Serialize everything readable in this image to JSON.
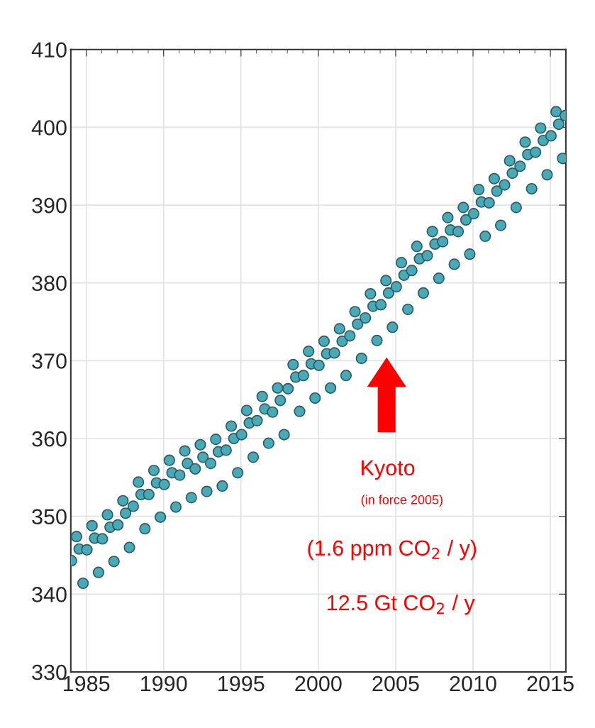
{
  "chart_data": {
    "type": "scatter",
    "x": [
      1984.04,
      1984.37,
      1984.54,
      1984.79,
      1985.04,
      1985.37,
      1985.54,
      1985.79,
      1986.04,
      1986.37,
      1986.54,
      1986.79,
      1987.04,
      1987.37,
      1987.54,
      1987.79,
      1988.04,
      1988.37,
      1988.54,
      1988.79,
      1989.04,
      1989.37,
      1989.54,
      1989.79,
      1990.04,
      1990.37,
      1990.54,
      1990.79,
      1991.04,
      1991.37,
      1991.54,
      1991.79,
      1992.04,
      1992.37,
      1992.54,
      1992.79,
      1993.04,
      1993.37,
      1993.54,
      1993.79,
      1994.04,
      1994.37,
      1994.54,
      1994.79,
      1995.04,
      1995.37,
      1995.54,
      1995.79,
      1996.04,
      1996.37,
      1996.54,
      1996.79,
      1997.04,
      1997.37,
      1997.54,
      1997.79,
      1998.04,
      1998.37,
      1998.54,
      1998.79,
      1999.04,
      1999.37,
      1999.54,
      1999.79,
      2000.04,
      2000.37,
      2000.54,
      2000.79,
      2001.04,
      2001.37,
      2001.54,
      2001.79,
      2002.04,
      2002.37,
      2002.54,
      2002.79,
      2003.04,
      2003.37,
      2003.54,
      2003.79,
      2004.04,
      2004.37,
      2004.54,
      2004.79,
      2005.04,
      2005.37,
      2005.54,
      2005.79,
      2006.04,
      2006.37,
      2006.54,
      2006.79,
      2007.04,
      2007.37,
      2007.54,
      2007.79,
      2008.04,
      2008.37,
      2008.54,
      2008.79,
      2009.04,
      2009.37,
      2009.54,
      2009.79,
      2010.04,
      2010.37,
      2010.54,
      2010.79,
      2011.04,
      2011.37,
      2011.54,
      2011.79,
      2012.04,
      2012.37,
      2012.54,
      2012.79,
      2013.04,
      2013.37,
      2013.54,
      2013.79,
      2014.04,
      2014.37,
      2014.54,
      2014.79,
      2015.04,
      2015.37,
      2015.54,
      2015.79,
      2015.96
    ],
    "series": [
      {
        "color": "#4aa9b6",
        "values": [
          344.3,
          347.4,
          345.8,
          341.4,
          345.7,
          348.8,
          347.2,
          342.8,
          347.1,
          350.2,
          348.6,
          344.2,
          348.9,
          352.0,
          350.4,
          346.0,
          351.3,
          354.4,
          352.8,
          348.4,
          352.8,
          355.9,
          354.3,
          349.9,
          354.1,
          357.2,
          355.6,
          351.2,
          355.3,
          358.4,
          356.8,
          352.4,
          356.1,
          359.2,
          357.6,
          353.2,
          356.8,
          359.9,
          358.3,
          353.9,
          358.5,
          361.6,
          360.0,
          355.6,
          360.5,
          363.6,
          362.0,
          357.6,
          362.3,
          365.4,
          363.8,
          359.4,
          363.4,
          366.5,
          364.9,
          360.5,
          366.4,
          369.5,
          367.9,
          363.5,
          368.1,
          371.2,
          369.6,
          365.2,
          369.4,
          372.5,
          370.9,
          366.5,
          371.0,
          374.1,
          372.5,
          368.1,
          373.2,
          376.3,
          374.7,
          370.3,
          375.5,
          378.6,
          377.0,
          372.6,
          377.2,
          380.3,
          378.7,
          374.3,
          379.5,
          382.6,
          381.0,
          376.6,
          381.6,
          384.7,
          383.1,
          378.7,
          383.5,
          386.6,
          385.0,
          380.6,
          385.3,
          388.4,
          386.8,
          382.4,
          386.6,
          389.7,
          388.1,
          383.7,
          388.9,
          392.0,
          390.4,
          386.0,
          390.3,
          393.4,
          391.8,
          387.4,
          392.6,
          395.7,
          394.1,
          389.7,
          395.0,
          398.1,
          396.5,
          392.1,
          396.8,
          399.9,
          398.3,
          393.9,
          398.9,
          402.0,
          400.4,
          396.0,
          401.5
        ]
      }
    ],
    "xlim": [
      1984,
      2016
    ],
    "xticks": [
      1985,
      1990,
      1995,
      2000,
      2005,
      2010,
      2015
    ],
    "ylim": [
      330,
      410
    ],
    "yticks": [
      330,
      340,
      350,
      360,
      370,
      380,
      390,
      400,
      410
    ],
    "grid": true,
    "marker": "circle",
    "annotations": [
      "Kyoto",
      "(in force 2005)",
      "(1.6 ppm CO$_{2}$ / y)",
      "12.5 Gt CO$_{2}$ / y"
    ]
  }
}
